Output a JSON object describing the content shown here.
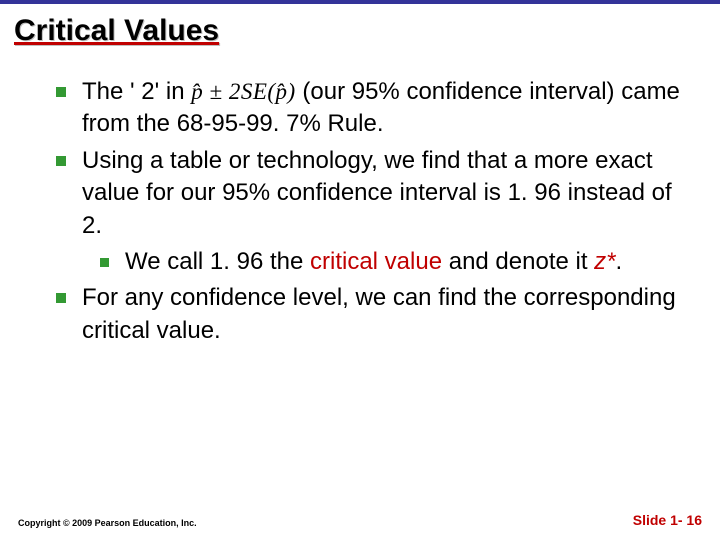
{
  "top_bar_color": "#333399",
  "title": "Critical Values",
  "title_underline_color": "#c00000",
  "bullet_color": "#339933",
  "bullets": {
    "b1_pre": "The ' 2' in ",
    "b1_formula": "p̂ ± 2SE(p̂)",
    "b1_post": " (our 95% confidence interval) came from the 68-95-99. 7% Rule.",
    "b2": "Using a table or technology, we find that a more exact value for our 95% confidence interval is 1. 96 instead of 2.",
    "b2a_pre": "We call 1. 96 the ",
    "b2a_red1": "critical value",
    "b2a_mid": " and denote it ",
    "b2a_red2": "z*",
    "b2a_post": ".",
    "b3": "For any confidence level, we can find the corresponding critical value."
  },
  "footer": {
    "copyright": "Copyright © 2009 Pearson Education, Inc.",
    "slide": "Slide 1- 16"
  }
}
